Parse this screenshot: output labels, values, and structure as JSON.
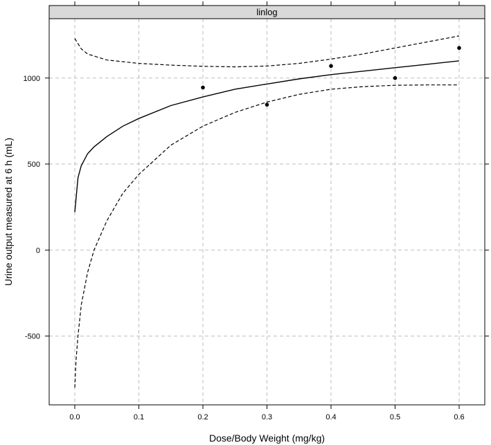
{
  "chart_data": {
    "type": "scatter",
    "panel_label": "linlog",
    "xlabel": "Dose/Body Weight (mg/kg)",
    "ylabel": "Urine output measured at 6 h (mL)",
    "xlim": [
      -0.04,
      0.64
    ],
    "ylim": [
      -900,
      1345
    ],
    "x_ticks": [
      0.0,
      0.1,
      0.2,
      0.3,
      0.4,
      0.5,
      0.6
    ],
    "x_tick_labels": [
      "0.0",
      "0.1",
      "0.2",
      "0.3",
      "0.4",
      "0.5",
      "0.6"
    ],
    "y_ticks": [
      -500,
      0,
      500,
      1000
    ],
    "y_tick_labels": [
      "-500",
      "0",
      "500",
      "1000"
    ],
    "grid": true,
    "points": [
      {
        "x": 0.2,
        "y": 945
      },
      {
        "x": 0.3,
        "y": 845
      },
      {
        "x": 0.4,
        "y": 1070
      },
      {
        "x": 0.5,
        "y": 1000
      },
      {
        "x": 0.6,
        "y": 1175
      }
    ],
    "fit_line": {
      "style": "solid",
      "x": [
        0.0,
        0.005,
        0.01,
        0.02,
        0.03,
        0.05,
        0.075,
        0.1,
        0.15,
        0.2,
        0.25,
        0.3,
        0.35,
        0.4,
        0.45,
        0.5,
        0.55,
        0.6
      ],
      "y": [
        220,
        420,
        490,
        560,
        600,
        660,
        720,
        765,
        840,
        890,
        935,
        965,
        995,
        1020,
        1040,
        1060,
        1080,
        1100
      ]
    },
    "upper_band": {
      "style": "dashed",
      "x": [
        0.0,
        0.005,
        0.01,
        0.02,
        0.05,
        0.1,
        0.15,
        0.2,
        0.25,
        0.3,
        0.35,
        0.4,
        0.45,
        0.5,
        0.55,
        0.6
      ],
      "y": [
        1230,
        1200,
        1170,
        1140,
        1105,
        1085,
        1075,
        1068,
        1065,
        1070,
        1085,
        1110,
        1140,
        1175,
        1210,
        1245
      ]
    },
    "lower_band": {
      "style": "dashed",
      "x": [
        0.0,
        0.002,
        0.005,
        0.01,
        0.02,
        0.03,
        0.05,
        0.075,
        0.1,
        0.15,
        0.2,
        0.25,
        0.3,
        0.35,
        0.4,
        0.45,
        0.5,
        0.55,
        0.6
      ],
      "y": [
        -800,
        -640,
        -500,
        -320,
        -130,
        0,
        170,
        330,
        440,
        610,
        720,
        800,
        860,
        905,
        935,
        950,
        958,
        960,
        960
      ]
    },
    "colors": {
      "line": "#000000",
      "grid": "#bdbdbd",
      "strip": "#d9d9d9"
    }
  }
}
